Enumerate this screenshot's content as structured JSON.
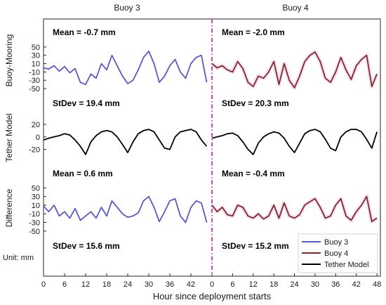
{
  "chart_data": {
    "type": "line",
    "column_titles": [
      "Buoy 3",
      "Buoy 4"
    ],
    "xlabel": "Hour since deployment starts",
    "x_ticks_left": [
      "0",
      "6",
      "12",
      "18",
      "24",
      "30",
      "36",
      "42"
    ],
    "x_ticks_right": [
      "0",
      "6",
      "12",
      "18",
      "24",
      "30",
      "36",
      "42",
      "48"
    ],
    "unit_label": "Unit: mm",
    "legend": {
      "placement": "bottom-right",
      "entries": [
        "Buoy 3",
        "Buoy 4",
        "Tether Model"
      ]
    },
    "colors": {
      "buoy3": "#5a5abf",
      "buoy4": "#7a2a2a",
      "tether": "#000000",
      "divider": "#b400b4"
    },
    "panels": [
      {
        "ylabel": "Buoy-Mooring",
        "yticks": [
          50,
          30,
          10,
          -10,
          -30,
          -50
        ],
        "ylim": [
          -60,
          70
        ],
        "stats_left": "Mean = -0.7 mm",
        "stats_right": "Mean = -2.0 mm",
        "series_left": {
          "name": "Buoy 3",
          "x": [
            0,
            1.5,
            3,
            4.5,
            6,
            7.5,
            9,
            10.5,
            12,
            13.5,
            15,
            16.5,
            18,
            19.5,
            21,
            22.5,
            24,
            25.5,
            27,
            28.5,
            30,
            31.5,
            33,
            34.5,
            36,
            37.5,
            39,
            40.5,
            42,
            43.5,
            45,
            46.5
          ],
          "y": [
            0,
            -3,
            5,
            -8,
            3,
            -12,
            -2,
            -35,
            -40,
            -15,
            -25,
            10,
            -5,
            30,
            5,
            -20,
            -38,
            -30,
            -5,
            25,
            40,
            10,
            -35,
            -20,
            5,
            20,
            -10,
            -25,
            10,
            25,
            30,
            -35
          ]
        },
        "series_right": {
          "name": "Buoy 4",
          "x": [
            0,
            1.5,
            3,
            4.5,
            6,
            7.5,
            9,
            10.5,
            12,
            13.5,
            15,
            16.5,
            18,
            19.5,
            21,
            22.5,
            24,
            25.5,
            27,
            28.5,
            30,
            31.5,
            33,
            34.5,
            36,
            37.5,
            39,
            40.5,
            42,
            43.5,
            45,
            46.5,
            48
          ],
          "y": [
            10,
            0,
            5,
            -5,
            -10,
            15,
            -2,
            -35,
            -45,
            -20,
            -25,
            -10,
            15,
            -40,
            10,
            -30,
            -48,
            -20,
            15,
            30,
            38,
            15,
            -25,
            -35,
            -10,
            25,
            -5,
            -28,
            5,
            20,
            30,
            -45,
            -15
          ]
        }
      },
      {
        "ylabel": "Tether Model",
        "yticks": [
          20,
          0,
          -20
        ],
        "ylim": [
          -35,
          30
        ],
        "stats_left": "StDev = 19.4 mm",
        "stats_right": "StDev = 20.3 mm",
        "series_left": {
          "name": "Tether Model",
          "x": [
            0,
            1.5,
            3,
            4.5,
            6,
            7.5,
            9,
            10.5,
            12,
            13.5,
            15,
            16.5,
            18,
            19.5,
            21,
            22.5,
            24,
            25.5,
            27,
            28.5,
            30,
            31.5,
            33,
            34.5,
            36,
            37.5,
            39,
            40.5,
            42,
            43.5,
            45,
            46.5
          ],
          "y": [
            -5,
            -2,
            0,
            2,
            5,
            3,
            -5,
            -15,
            -28,
            -8,
            2,
            8,
            10,
            8,
            0,
            -12,
            -25,
            -8,
            5,
            10,
            12,
            8,
            -5,
            -18,
            -20,
            0,
            8,
            10,
            12,
            8,
            -5,
            -15
          ]
        },
        "series_right": {
          "name": "Tether Model",
          "x": [
            0,
            1.5,
            3,
            4.5,
            6,
            7.5,
            9,
            10.5,
            12,
            13.5,
            15,
            16.5,
            18,
            19.5,
            21,
            22.5,
            24,
            25.5,
            27,
            28.5,
            30,
            31.5,
            33,
            34.5,
            36,
            37.5,
            39,
            40.5,
            42,
            43.5,
            45,
            46.5,
            48
          ],
          "y": [
            -2,
            0,
            2,
            5,
            6,
            2,
            -8,
            -20,
            -28,
            -10,
            0,
            5,
            8,
            6,
            -2,
            -15,
            -25,
            -10,
            5,
            10,
            12,
            8,
            -4,
            -18,
            -22,
            0,
            8,
            12,
            12,
            8,
            -4,
            -18,
            8
          ]
        }
      },
      {
        "ylabel": "Difference",
        "yticks": [
          50,
          30,
          10,
          -10,
          -30,
          -50
        ],
        "ylim": [
          -60,
          70
        ],
        "stats_left": "Mean = 0.6 mm",
        "stats_right": "Mean = -0.4 mm",
        "series_left": {
          "name": "Buoy 3",
          "x": [
            0,
            1.5,
            3,
            4.5,
            6,
            7.5,
            9,
            10.5,
            12,
            13.5,
            15,
            16.5,
            18,
            19.5,
            21,
            22.5,
            24,
            25.5,
            27,
            28.5,
            30,
            31.5,
            33,
            34.5,
            36,
            37.5,
            39,
            40.5,
            42,
            43.5,
            45,
            46.5
          ],
          "y": [
            8,
            -5,
            10,
            -15,
            -5,
            -20,
            2,
            -25,
            -15,
            -5,
            -20,
            5,
            -15,
            20,
            5,
            -10,
            -18,
            -15,
            -8,
            20,
            30,
            5,
            -28,
            -5,
            20,
            25,
            -15,
            -30,
            5,
            20,
            15,
            -30
          ]
        },
        "series_right": {
          "name": "Buoy 4",
          "x": [
            0,
            1.5,
            3,
            4.5,
            6,
            7.5,
            9,
            10.5,
            12,
            13.5,
            15,
            16.5,
            18,
            19.5,
            21,
            22.5,
            24,
            25.5,
            27,
            28.5,
            30,
            31.5,
            33,
            34.5,
            36,
            37.5,
            39,
            40.5,
            42,
            43.5,
            45,
            46.5,
            48
          ],
          "y": [
            10,
            -5,
            5,
            -12,
            -15,
            10,
            5,
            -15,
            -20,
            -10,
            -22,
            -15,
            10,
            -20,
            15,
            -15,
            -20,
            -12,
            10,
            18,
            25,
            5,
            -20,
            -15,
            10,
            25,
            -15,
            -25,
            -5,
            10,
            30,
            -28,
            -20
          ]
        }
      }
    ],
    "bottom_stats_left": "StDev = 15.6 mm",
    "bottom_stats_right": "StDev = 15.2 mm"
  }
}
